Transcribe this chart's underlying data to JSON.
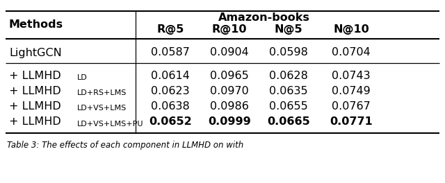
{
  "group_header": "Amazon-books",
  "col_headers": [
    "Methods",
    "R@5",
    "R@10",
    "N@5",
    "N@10"
  ],
  "rows": [
    {
      "label_main": "LightGCN",
      "label_sub": "",
      "values": [
        "0.0587",
        "0.0904",
        "0.0598",
        "0.0704"
      ],
      "bold": [
        false,
        false,
        false,
        false
      ],
      "is_baseline": true
    },
    {
      "label_main": "+ LLMHD",
      "label_sub": "LD",
      "values": [
        "0.0614",
        "0.0965",
        "0.0628",
        "0.0743"
      ],
      "bold": [
        false,
        false,
        false,
        false
      ],
      "is_baseline": false
    },
    {
      "label_main": "+ LLMHD",
      "label_sub": "LD+RS+LMS",
      "values": [
        "0.0623",
        "0.0970",
        "0.0635",
        "0.0749"
      ],
      "bold": [
        false,
        false,
        false,
        false
      ],
      "is_baseline": false
    },
    {
      "label_main": "+ LLMHD",
      "label_sub": "LD+VS+LMS",
      "values": [
        "0.0638",
        "0.0986",
        "0.0655",
        "0.0767"
      ],
      "bold": [
        false,
        false,
        false,
        false
      ],
      "is_baseline": false
    },
    {
      "label_main": "+ LLMHD",
      "label_sub": "LD+VS+LMS+PU",
      "values": [
        "0.0652",
        "0.0999",
        "0.0665",
        "0.0771"
      ],
      "bold": [
        true,
        true,
        true,
        true
      ],
      "is_baseline": false
    }
  ],
  "caption": "Table 3: The effects of each component in LLMHD on with",
  "background_color": "#ffffff",
  "text_color": "#000000",
  "main_fontsize": 11.5,
  "sub_fontsize": 8.0,
  "header_fontsize": 11.5
}
